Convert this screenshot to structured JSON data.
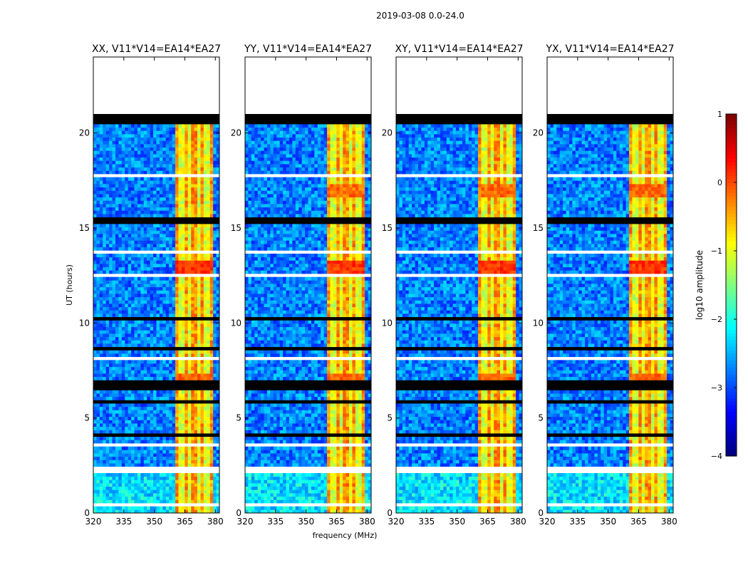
{
  "figure": {
    "suptitle": "2019-03-08 0.0-24.0",
    "xlabel": "frequency (MHz)",
    "ylabel": "UT (hours)"
  },
  "chart_data": {
    "type": "heatmap",
    "title": "2019-03-08 0.0-24.0",
    "xlabel": "frequency (MHz)",
    "ylabel": "UT (hours)",
    "xlim": [
      320,
      382
    ],
    "ylim": [
      0,
      24
    ],
    "x_ticks": [
      320,
      335,
      350,
      365,
      380
    ],
    "y_ticks": [
      0,
      5,
      10,
      15,
      20
    ],
    "data_end_hour": 21.0,
    "rfi_band_mhz": [
      360,
      378.5
    ],
    "rfi_channels_mhz": [
      361.5,
      365.5,
      369.5,
      373.5,
      377.5
    ],
    "blanked_hours": [
      [
        0.3,
        0.45
      ],
      [
        1.5,
        1.58
      ],
      [
        2.05,
        2.5
      ],
      [
        2.95,
        3.05
      ],
      [
        3.55,
        3.65
      ],
      [
        4.3,
        4.36
      ],
      [
        7.5,
        7.58
      ],
      [
        8.1,
        8.16
      ],
      [
        11.0,
        11.06
      ],
      [
        12.5,
        12.57
      ],
      [
        13.7,
        13.77
      ],
      [
        14.5,
        14.56
      ],
      [
        16.3,
        16.36
      ],
      [
        17.7,
        17.8
      ],
      [
        19.25,
        19.31
      ],
      [
        20.05,
        20.12
      ]
    ],
    "flagged_hours": [
      [
        20.4,
        21.0
      ],
      [
        15.3,
        15.5
      ],
      [
        8.6,
        8.75
      ],
      [
        6.5,
        7.0
      ],
      [
        5.7,
        5.9
      ],
      [
        4.7,
        4.8
      ],
      [
        4.05,
        4.15
      ],
      [
        19.6,
        19.68
      ],
      [
        12.2,
        12.26
      ],
      [
        10.2,
        10.26
      ]
    ],
    "series": [
      {
        "name": "XX, V11*V14=EA14*EA27"
      },
      {
        "name": "YY, V11*V14=EA14*EA27"
      },
      {
        "name": "XY, V11*V14=EA14*EA27"
      },
      {
        "name": "YX, V11*V14=EA14*EA27"
      }
    ],
    "colorbar": {
      "label": "log10 amplitude",
      "min": -4,
      "max": 1,
      "ticks": [
        -4,
        -3,
        -2,
        -1,
        0,
        1
      ],
      "tick_labels": [
        "−4",
        "−3",
        "−2",
        "−1",
        "0",
        "1"
      ]
    }
  }
}
